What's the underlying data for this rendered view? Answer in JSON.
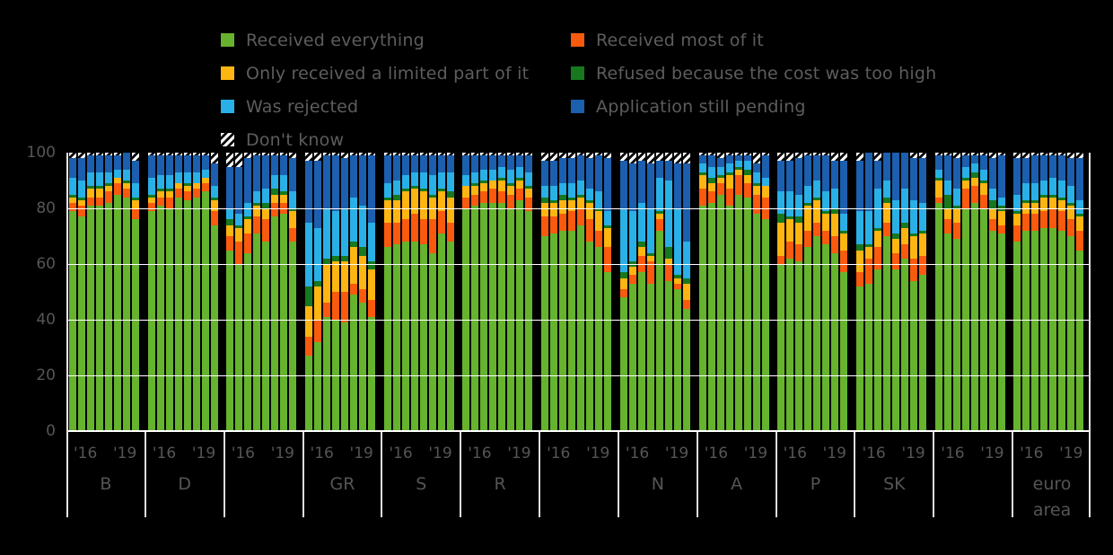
{
  "legend": {
    "items": {
      "everything": {
        "label": "Received everything",
        "color": "#66b32e"
      },
      "most": {
        "label": "Received most of it",
        "color": "#fa5a0d"
      },
      "limited": {
        "label": "Only received a limited part of it",
        "color": "#fdb511"
      },
      "refused": {
        "label": "Refused because the cost was too high",
        "color": "#17781f"
      },
      "rejected": {
        "label": "Was rejected",
        "color": "#29b0e6"
      },
      "pending": {
        "label": "Application still pending",
        "color": "#1c5fae"
      },
      "dontknow": {
        "label": "Don't know",
        "color": "hatch"
      }
    },
    "columns": [
      [
        "everything",
        "limited",
        "rejected",
        "dontknow"
      ],
      [
        "most",
        "refused",
        "pending"
      ]
    ]
  },
  "chart_data": {
    "type": "bar",
    "stacked": true,
    "unit": "percent",
    "ylim": [
      0,
      100
    ],
    "yticks": [
      0,
      20,
      40,
      60,
      80,
      100
    ],
    "gridlines": [
      20,
      40,
      60,
      80
    ],
    "x_tick_labels": [
      "'16",
      "'19"
    ],
    "series_order": [
      "everything",
      "most",
      "limited",
      "refused",
      "rejected",
      "pending",
      "dontknow"
    ],
    "series_labels": [
      "Received everything",
      "Received most of it",
      "Only received a limited part of it",
      "Refused because the cost was too high",
      "Was rejected",
      "Application still pending",
      "Don't know"
    ],
    "groups": [
      {
        "label": "B",
        "bars": [
          [
            79,
            3,
            2,
            1,
            6,
            7,
            2
          ],
          [
            77,
            4,
            2,
            1,
            6,
            8,
            2
          ],
          [
            81,
            3,
            3,
            1,
            5,
            6,
            1
          ],
          [
            81,
            3,
            3,
            1,
            5,
            6,
            1
          ],
          [
            82,
            4,
            2,
            1,
            4,
            6,
            1
          ],
          [
            85,
            4,
            2,
            0,
            3,
            5,
            1
          ],
          [
            84,
            3,
            2,
            1,
            4,
            6,
            0
          ],
          [
            76,
            4,
            3,
            1,
            5,
            8,
            3
          ]
        ]
      },
      {
        "label": "D",
        "bars": [
          [
            79,
            3,
            2,
            1,
            6,
            8,
            1
          ],
          [
            81,
            3,
            2,
            1,
            5,
            7,
            1
          ],
          [
            80,
            4,
            2,
            1,
            5,
            7,
            1
          ],
          [
            84,
            3,
            2,
            0,
            4,
            6,
            1
          ],
          [
            83,
            3,
            2,
            1,
            4,
            6,
            1
          ],
          [
            84,
            3,
            2,
            0,
            4,
            6,
            1
          ],
          [
            86,
            3,
            2,
            0,
            3,
            5,
            1
          ],
          [
            74,
            5,
            4,
            1,
            4,
            8,
            4
          ]
        ]
      },
      {
        "label": "",
        "bars": [
          [
            65,
            5,
            4,
            2,
            4,
            15,
            5
          ],
          [
            60,
            8,
            5,
            1,
            4,
            17,
            5
          ],
          [
            64,
            7,
            5,
            1,
            5,
            16,
            2
          ],
          [
            71,
            6,
            4,
            1,
            4,
            13,
            1
          ],
          [
            68,
            8,
            4,
            2,
            5,
            12,
            1
          ],
          [
            77,
            5,
            3,
            2,
            5,
            7,
            1
          ],
          [
            78,
            4,
            3,
            1,
            6,
            7,
            1
          ],
          [
            68,
            5,
            6,
            1,
            6,
            12,
            2
          ]
        ]
      },
      {
        "label": "GR",
        "bars": [
          [
            27,
            7,
            11,
            7,
            23,
            22,
            3
          ],
          [
            32,
            8,
            12,
            2,
            19,
            24,
            3
          ],
          [
            41,
            5,
            14,
            2,
            18,
            19,
            1
          ],
          [
            40,
            10,
            11,
            2,
            16,
            20,
            1
          ],
          [
            39,
            11,
            11,
            2,
            17,
            18,
            2
          ],
          [
            49,
            4,
            13,
            2,
            16,
            15,
            1
          ],
          [
            46,
            5,
            12,
            3,
            15,
            18,
            1
          ],
          [
            41,
            6,
            11,
            3,
            14,
            24,
            1
          ]
        ]
      },
      {
        "label": "S",
        "bars": [
          [
            66,
            9,
            8,
            1,
            5,
            10,
            1
          ],
          [
            67,
            8,
            8,
            2,
            5,
            9,
            1
          ],
          [
            68,
            8,
            10,
            1,
            5,
            7,
            1
          ],
          [
            68,
            10,
            9,
            1,
            5,
            6,
            1
          ],
          [
            67,
            9,
            10,
            1,
            6,
            6,
            1
          ],
          [
            64,
            12,
            8,
            1,
            7,
            7,
            1
          ],
          [
            71,
            8,
            7,
            1,
            6,
            6,
            1
          ],
          [
            68,
            7,
            9,
            2,
            7,
            6,
            1
          ]
        ]
      },
      {
        "label": "R",
        "bars": [
          [
            80,
            4,
            4,
            0,
            4,
            7,
            1
          ],
          [
            81,
            4,
            3,
            1,
            4,
            6,
            1
          ],
          [
            82,
            4,
            3,
            1,
            4,
            5,
            1
          ],
          [
            82,
            5,
            3,
            0,
            4,
            5,
            1
          ],
          [
            82,
            4,
            4,
            1,
            4,
            4,
            1
          ],
          [
            80,
            5,
            3,
            1,
            5,
            5,
            1
          ],
          [
            83,
            4,
            3,
            1,
            4,
            4,
            1
          ],
          [
            79,
            5,
            3,
            1,
            5,
            6,
            1
          ]
        ]
      },
      {
        "label": "",
        "bars": [
          [
            70,
            7,
            5,
            2,
            4,
            9,
            3
          ],
          [
            71,
            6,
            5,
            1,
            5,
            9,
            3
          ],
          [
            72,
            6,
            5,
            2,
            4,
            9,
            2
          ],
          [
            72,
            7,
            4,
            1,
            5,
            9,
            2
          ],
          [
            74,
            6,
            4,
            1,
            5,
            9,
            1
          ],
          [
            68,
            8,
            6,
            1,
            4,
            11,
            2
          ],
          [
            66,
            6,
            7,
            1,
            6,
            13,
            1
          ],
          [
            57,
            9,
            7,
            1,
            5,
            19,
            2
          ]
        ]
      },
      {
        "label": "N",
        "bars": [
          [
            48,
            3,
            4,
            2,
            23,
            17,
            3
          ],
          [
            53,
            3,
            3,
            2,
            18,
            17,
            4
          ],
          [
            57,
            6,
            3,
            2,
            14,
            15,
            3
          ],
          [
            53,
            8,
            2,
            1,
            16,
            16,
            4
          ],
          [
            72,
            4,
            2,
            1,
            12,
            6,
            3
          ],
          [
            54,
            6,
            2,
            4,
            24,
            7,
            3
          ],
          [
            51,
            2,
            2,
            1,
            24,
            16,
            4
          ],
          [
            44,
            3,
            6,
            2,
            13,
            28,
            4
          ]
        ]
      },
      {
        "label": "A",
        "bars": [
          [
            81,
            6,
            5,
            1,
            3,
            3,
            1
          ],
          [
            82,
            4,
            3,
            2,
            4,
            4,
            1
          ],
          [
            85,
            4,
            2,
            1,
            3,
            3,
            2
          ],
          [
            81,
            6,
            5,
            1,
            3,
            3,
            1
          ],
          [
            85,
            7,
            2,
            1,
            2,
            2,
            1
          ],
          [
            84,
            5,
            3,
            2,
            3,
            2,
            1
          ],
          [
            78,
            7,
            3,
            1,
            4,
            3,
            4
          ],
          [
            76,
            8,
            4,
            0,
            3,
            8,
            1
          ]
        ]
      },
      {
        "label": "P",
        "bars": [
          [
            60,
            3,
            12,
            3,
            8,
            11,
            3
          ],
          [
            62,
            6,
            8,
            1,
            9,
            11,
            3
          ],
          [
            61,
            6,
            8,
            2,
            8,
            13,
            2
          ],
          [
            66,
            6,
            9,
            1,
            6,
            11,
            1
          ],
          [
            70,
            5,
            8,
            1,
            6,
            9,
            1
          ],
          [
            67,
            5,
            6,
            1,
            7,
            13,
            1
          ],
          [
            64,
            6,
            8,
            2,
            7,
            10,
            3
          ],
          [
            57,
            8,
            6,
            1,
            6,
            19,
            3
          ]
        ]
      },
      {
        "label": "SK",
        "bars": [
          [
            52,
            5,
            8,
            2,
            12,
            18,
            3
          ],
          [
            53,
            9,
            4,
            1,
            12,
            21,
            0
          ],
          [
            58,
            8,
            6,
            1,
            14,
            10,
            3
          ],
          [
            70,
            5,
            7,
            2,
            6,
            10,
            0
          ],
          [
            58,
            6,
            5,
            2,
            12,
            17,
            0
          ],
          [
            62,
            5,
            6,
            2,
            12,
            13,
            0
          ],
          [
            54,
            8,
            8,
            1,
            12,
            15,
            2
          ],
          [
            56,
            7,
            8,
            1,
            10,
            16,
            2
          ]
        ]
      },
      {
        "label": "",
        "bars": [
          [
            82,
            2,
            6,
            1,
            3,
            5,
            1
          ],
          [
            71,
            5,
            4,
            5,
            5,
            9,
            1
          ],
          [
            69,
            6,
            5,
            1,
            6,
            11,
            2
          ],
          [
            80,
            7,
            3,
            1,
            4,
            4,
            1
          ],
          [
            82,
            6,
            3,
            2,
            3,
            3,
            1
          ],
          [
            80,
            5,
            4,
            1,
            4,
            5,
            1
          ],
          [
            72,
            4,
            4,
            3,
            4,
            11,
            2
          ],
          [
            71,
            3,
            5,
            2,
            3,
            15,
            1
          ]
        ]
      },
      {
        "label": "euro area",
        "bars": [
          [
            68,
            6,
            4,
            1,
            6,
            13,
            2
          ],
          [
            72,
            6,
            4,
            1,
            6,
            9,
            2
          ],
          [
            72,
            6,
            4,
            1,
            6,
            10,
            1
          ],
          [
            73,
            6,
            5,
            1,
            5,
            9,
            1
          ],
          [
            73,
            7,
            4,
            1,
            6,
            8,
            1
          ],
          [
            72,
            7,
            4,
            1,
            6,
            9,
            1
          ],
          [
            70,
            6,
            5,
            1,
            6,
            10,
            2
          ],
          [
            65,
            7,
            5,
            1,
            5,
            15,
            2
          ]
        ]
      }
    ]
  }
}
